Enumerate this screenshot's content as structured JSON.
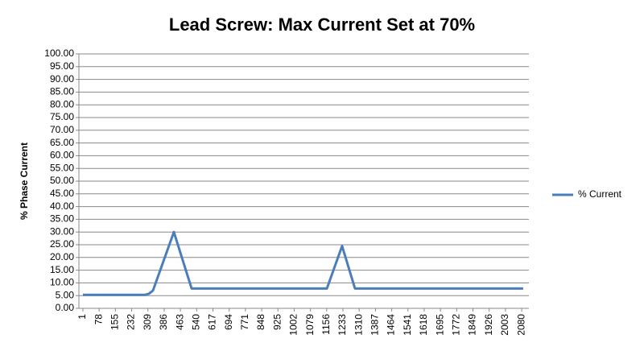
{
  "chart_data": {
    "type": "line",
    "title": "Lead Screw: Max Current Set at 70%",
    "y_label": "% Phase Current",
    "x": [
      1,
      295,
      315,
      333,
      432,
      516,
      1157,
      1229,
      1290,
      2087
    ],
    "series": [
      {
        "name": "% Current",
        "color": "#4a7ebb",
        "values": [
          5.3,
          5.3,
          5.8,
          7.0,
          30,
          7.8,
          7.8,
          24.5,
          7.8,
          7.8
        ]
      }
    ],
    "xlim": [
      -18,
      2114
    ],
    "xticks": [
      1,
      78,
      155,
      232,
      309,
      386,
      463,
      540,
      617,
      694,
      771,
      848,
      925,
      1002,
      1079,
      1156,
      1233,
      1310,
      1387,
      1464,
      1541,
      1618,
      1695,
      1772,
      1849,
      1926,
      2003,
      2080
    ],
    "ylim": [
      0,
      100
    ],
    "yticks": [
      {
        "value": 0,
        "label": "0.00"
      },
      {
        "value": 5,
        "label": "5.00"
      },
      {
        "value": 10,
        "label": "10.00"
      },
      {
        "value": 15,
        "label": "15.00"
      },
      {
        "value": 20,
        "label": "20.00"
      },
      {
        "value": 25,
        "label": "25.00"
      },
      {
        "value": 30,
        "label": "30.00"
      },
      {
        "value": 35,
        "label": "35.00"
      },
      {
        "value": 40,
        "label": "40.00"
      },
      {
        "value": 45,
        "label": "45.00"
      },
      {
        "value": 50,
        "label": "50.00"
      },
      {
        "value": 55,
        "label": "55.00"
      },
      {
        "value": 60,
        "label": "60.00"
      },
      {
        "value": 65,
        "label": "65.00"
      },
      {
        "value": 70,
        "label": "70.00"
      },
      {
        "value": 75,
        "label": "75.00"
      },
      {
        "value": 80,
        "label": "80.00"
      },
      {
        "value": 85,
        "label": "85.00"
      },
      {
        "value": 90,
        "label": "90.00"
      },
      {
        "value": 95,
        "label": "95.00"
      },
      {
        "value": 100,
        "label": "100.00"
      }
    ],
    "grid": true,
    "legend": "right"
  }
}
